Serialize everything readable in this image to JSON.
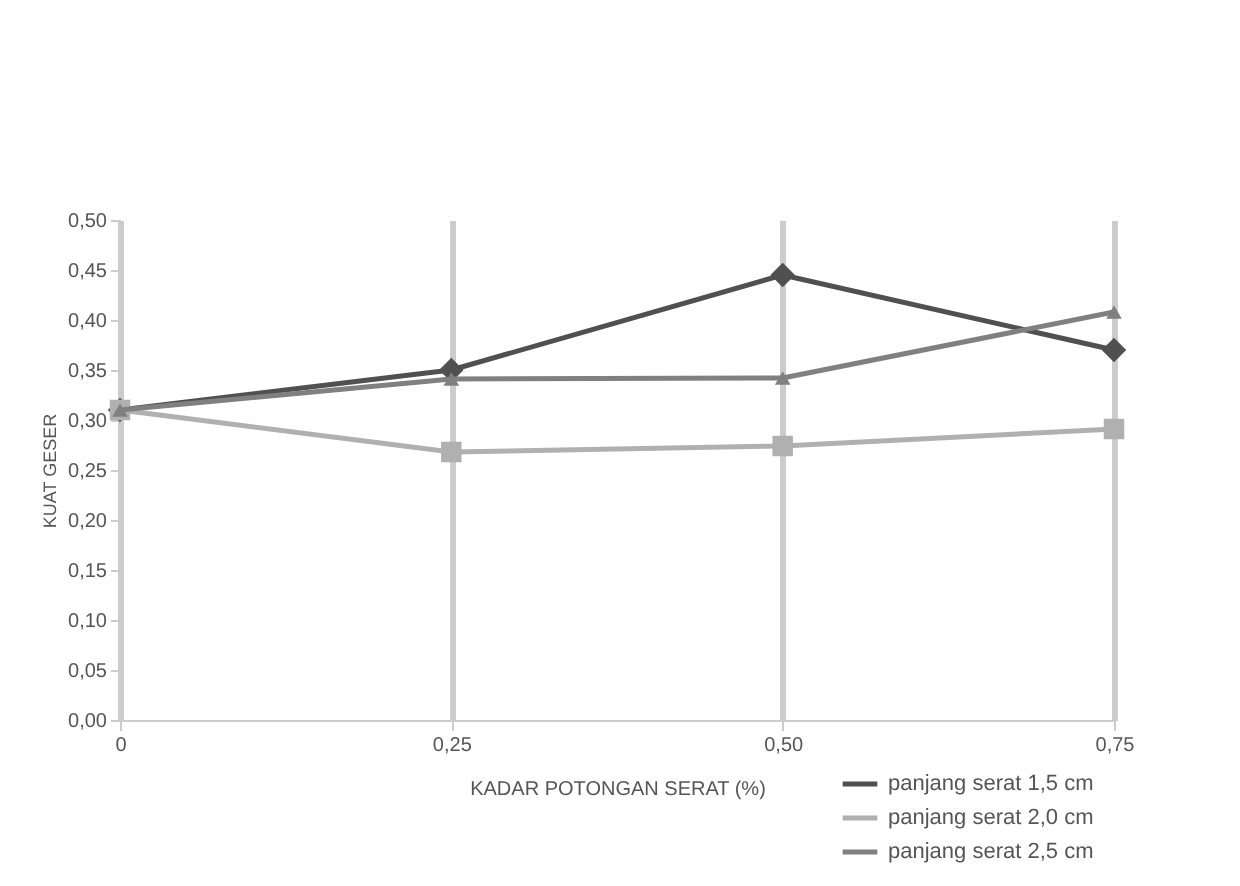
{
  "chart_data": {
    "type": "line",
    "xlabel": "KADAR POTONGAN SERAT (%)",
    "ylabel": "KUAT GESER",
    "categories": [
      "0",
      "0,25",
      "0,50",
      "0,75"
    ],
    "series": [
      {
        "name": "panjang serat 1,5 cm",
        "color": "#505050",
        "marker": "diamond",
        "values": [
          0.31,
          0.35,
          0.445,
          0.37
        ]
      },
      {
        "name": "panjang serat 2,0 cm",
        "color": "#b0b0b0",
        "marker": "square",
        "values": [
          0.31,
          0.268,
          0.274,
          0.291
        ]
      },
      {
        "name": "panjang serat 2,5 cm",
        "color": "#808080",
        "marker": "triangle",
        "values": [
          0.31,
          0.341,
          0.342,
          0.408
        ]
      }
    ],
    "ylim": [
      0,
      0.5
    ],
    "yticks": [
      {
        "value": 0,
        "label": "0,00"
      },
      {
        "value": 0.05,
        "label": "0,05"
      },
      {
        "value": 0.1,
        "label": "0,10"
      },
      {
        "value": 0.15,
        "label": "0,15"
      },
      {
        "value": 0.2,
        "label": "0,20"
      },
      {
        "value": 0.25,
        "label": "0,25"
      },
      {
        "value": 0.3,
        "label": "0,30"
      },
      {
        "value": 0.35,
        "label": "0,35"
      },
      {
        "value": 0.4,
        "label": "0,40"
      },
      {
        "value": 0.45,
        "label": "0,45"
      },
      {
        "value": 0.5,
        "label": "0,50"
      }
    ],
    "grid": "x",
    "legend": "bottom right",
    "line_style": "solid"
  }
}
